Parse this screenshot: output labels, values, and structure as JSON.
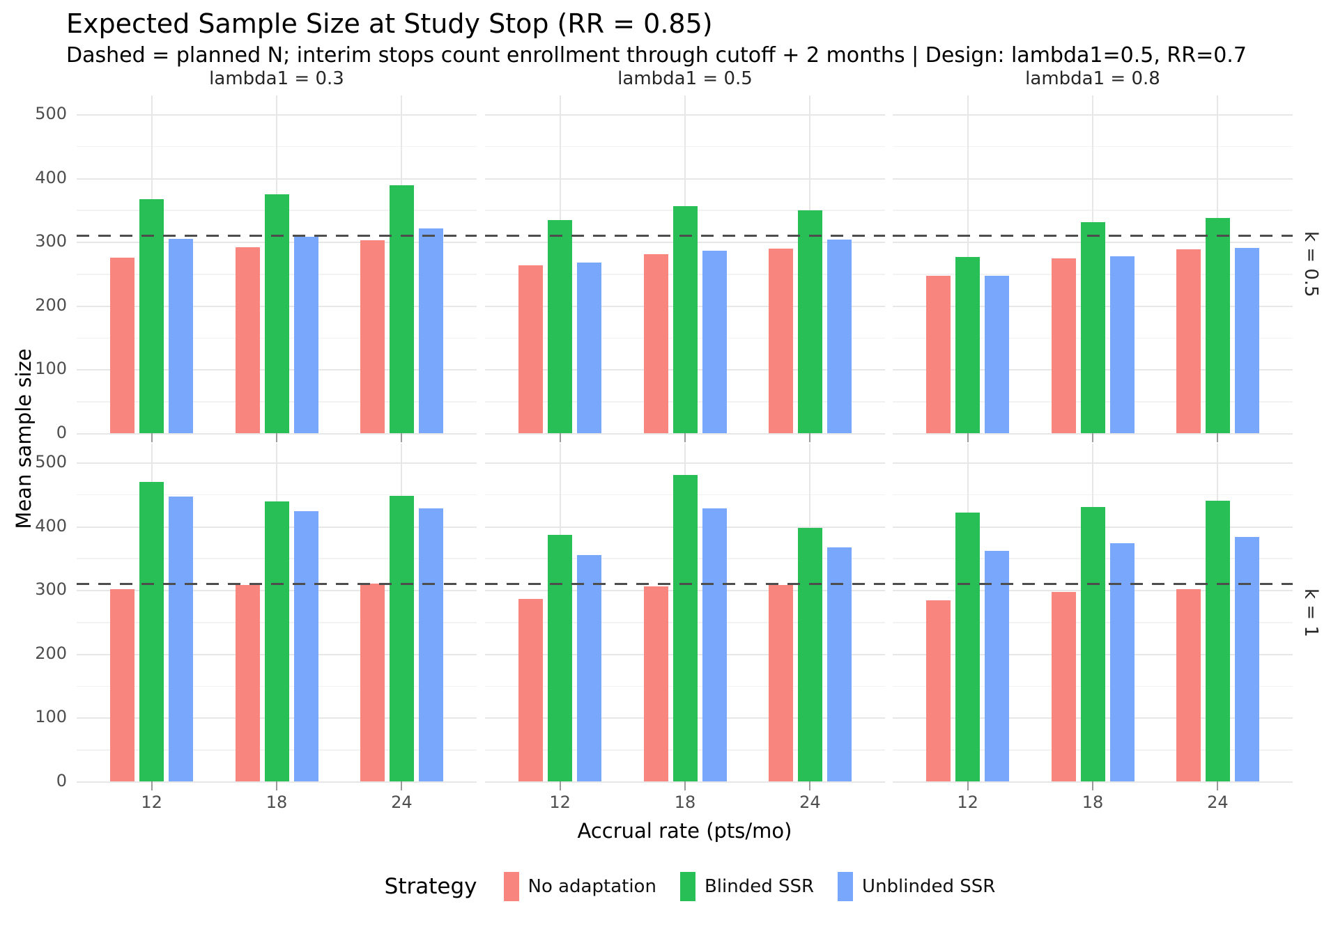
{
  "title": "Expected Sample Size at Study Stop (RR = 0.85)",
  "subtitle": "Dashed = planned N; interim stops count enrollment through cutoff + 2 months | Design: lambda1=0.5, RR=0.7",
  "axes": {
    "x_label": "Accrual rate (pts/mo)",
    "y_label": "Mean sample size",
    "x_tick_labels": [
      "12",
      "18",
      "24"
    ],
    "y_tick_labels": [
      500,
      400,
      300,
      200,
      100,
      0
    ]
  },
  "facets": {
    "col_labels": [
      "lambda1 = 0.3",
      "lambda1 = 0.5",
      "lambda1 = 0.8"
    ],
    "row_labels": [
      "k = 0.5",
      "k = 1"
    ]
  },
  "legend": {
    "title": "Strategy",
    "entries": [
      {
        "label": "No adaptation",
        "color": "#F8867E"
      },
      {
        "label": "Blinded SSR",
        "color": "#27BF56"
      },
      {
        "label": "Unblinded SSR",
        "color": "#79A7FB"
      }
    ]
  },
  "colors": {
    "reference_line": "#4d4d4d",
    "grid_major": "#e7e7e7",
    "grid_minor": "#f2f2f2",
    "tick_text": "#4d4d4d"
  },
  "chart_data": {
    "type": "bar",
    "title": "Expected Sample Size at Study Stop (RR = 0.85)",
    "subtitle": "Dashed = planned N; interim stops count enrollment through cutoff + 2 months | Design: lambda1=0.5, RR=0.7",
    "xlabel": "Accrual rate (pts/mo)",
    "ylabel": "Mean sample size",
    "categories": [
      12,
      18,
      24
    ],
    "series_names": [
      "No adaptation",
      "Blinded SSR",
      "Unblinded SSR"
    ],
    "ylim": [
      0,
      500
    ],
    "y_major_ticks": [
      0,
      100,
      200,
      300,
      400,
      500
    ],
    "y_minor_ticks": [
      50,
      150,
      250,
      350,
      450
    ],
    "grid": true,
    "legend_position": "bottom",
    "reference_line": {
      "value": 310,
      "meaning": "planned N",
      "style": "dashed"
    },
    "facet_cols": [
      "lambda1 = 0.3",
      "lambda1 = 0.5",
      "lambda1 = 0.8"
    ],
    "facet_rows": [
      "k = 0.5",
      "k = 1"
    ],
    "panels": [
      {
        "row": "k = 0.5",
        "col": "lambda1 = 0.3",
        "groups": [
          [
            275,
            367,
            305
          ],
          [
            291,
            374,
            308
          ],
          [
            302,
            389,
            321
          ]
        ]
      },
      {
        "row": "k = 0.5",
        "col": "lambda1 = 0.5",
        "groups": [
          [
            263,
            334,
            268
          ],
          [
            281,
            356,
            286
          ],
          [
            289,
            349,
            303
          ]
        ]
      },
      {
        "row": "k = 0.5",
        "col": "lambda1 = 0.8",
        "groups": [
          [
            247,
            276,
            247
          ],
          [
            274,
            331,
            277
          ],
          [
            288,
            337,
            290
          ]
        ]
      },
      {
        "row": "k = 1",
        "col": "lambda1 = 0.3",
        "groups": [
          [
            301,
            469,
            446
          ],
          [
            308,
            439,
            424
          ],
          [
            310,
            448,
            428
          ]
        ]
      },
      {
        "row": "k = 1",
        "col": "lambda1 = 0.5",
        "groups": [
          [
            286,
            387,
            355
          ],
          [
            306,
            480,
            428
          ],
          [
            308,
            397,
            367
          ]
        ]
      },
      {
        "row": "k = 1",
        "col": "lambda1 = 0.8",
        "groups": [
          [
            284,
            421,
            361
          ],
          [
            297,
            430,
            373
          ],
          [
            301,
            440,
            383
          ]
        ]
      }
    ]
  }
}
